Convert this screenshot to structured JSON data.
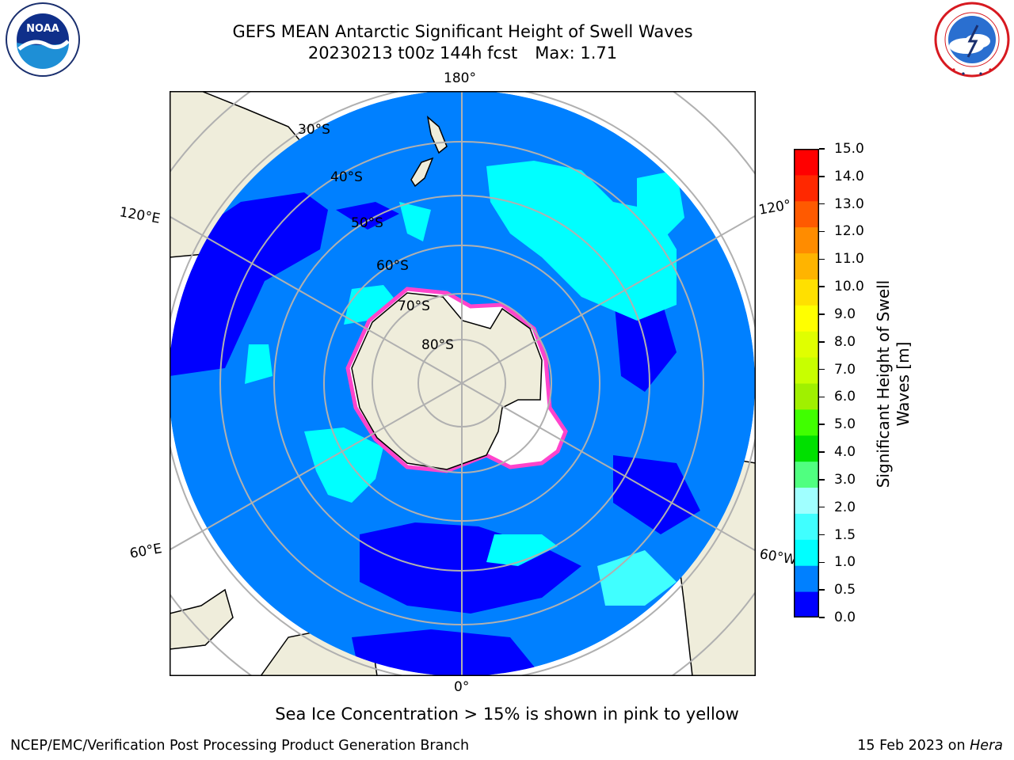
{
  "header": {
    "title": "GEFS MEAN Antarctic Significant Height of Swell Waves",
    "subtitle_run": "20230213 t00z 144h fcst",
    "subtitle_max": "Max: 1.71"
  },
  "logos": {
    "left": {
      "name": "NOAA",
      "text": "NOAA",
      "ring_text": "NATIONAL OCEANIC AND ATMOSPHERIC ADMINISTRATION • U.S. DEPARTMENT OF COMMERCE"
    },
    "right": {
      "name": "NATIONAL WEATHER SERVICE",
      "ring_text": "NATIONAL WEATHER SERVICE"
    }
  },
  "map": {
    "projection": "south polar stereographic",
    "meridian_labels": {
      "top": "180°",
      "bottom": "0°",
      "upper_left": "120°E",
      "upper_right": "120°",
      "lower_left": "60°E",
      "lower_right": "60°W"
    },
    "parallel_labels": [
      "30°S",
      "40°S",
      "50°S",
      "60°S",
      "70°S",
      "80°S"
    ],
    "colors": {
      "land": "#efeddb",
      "ocean_0_0.5": "#0000ff",
      "ocean_0.5_1.0": "#0080ff",
      "ocean_1.0_1.5": "#00ffff",
      "ocean_1.5_2.0": "#40ffff",
      "sea_ice": "#ff44cc",
      "grid": "#b0b0b0"
    }
  },
  "colorbar": {
    "label_line1": "Significant Height of Swell",
    "label_line2": "Waves [m]",
    "ticks": [
      "15.0",
      "14.0",
      "13.0",
      "12.0",
      "11.0",
      "10.0",
      "9.0",
      "8.0",
      "7.0",
      "6.0",
      "5.0",
      "4.0",
      "3.0",
      "2.0",
      "1.5",
      "1.0",
      "0.5",
      "0.0"
    ],
    "colors_bottom_to_top": [
      "#0000ff",
      "#0080ff",
      "#00ffff",
      "#40ffff",
      "#a0ffff",
      "#50ff80",
      "#00e000",
      "#40ff00",
      "#a0f000",
      "#c8ff00",
      "#e0ff00",
      "#ffff00",
      "#ffe000",
      "#ffb400",
      "#ff8c00",
      "#ff5a00",
      "#ff2800",
      "#ff0000"
    ]
  },
  "footer": {
    "sea_ice_note": "Sea Ice Concentration > 15% is shown in pink to yellow",
    "credit": "NCEP/EMC/Verification Post Processing Product Generation Branch",
    "date": "15 Feb 2023 on",
    "machine": "Hera"
  }
}
